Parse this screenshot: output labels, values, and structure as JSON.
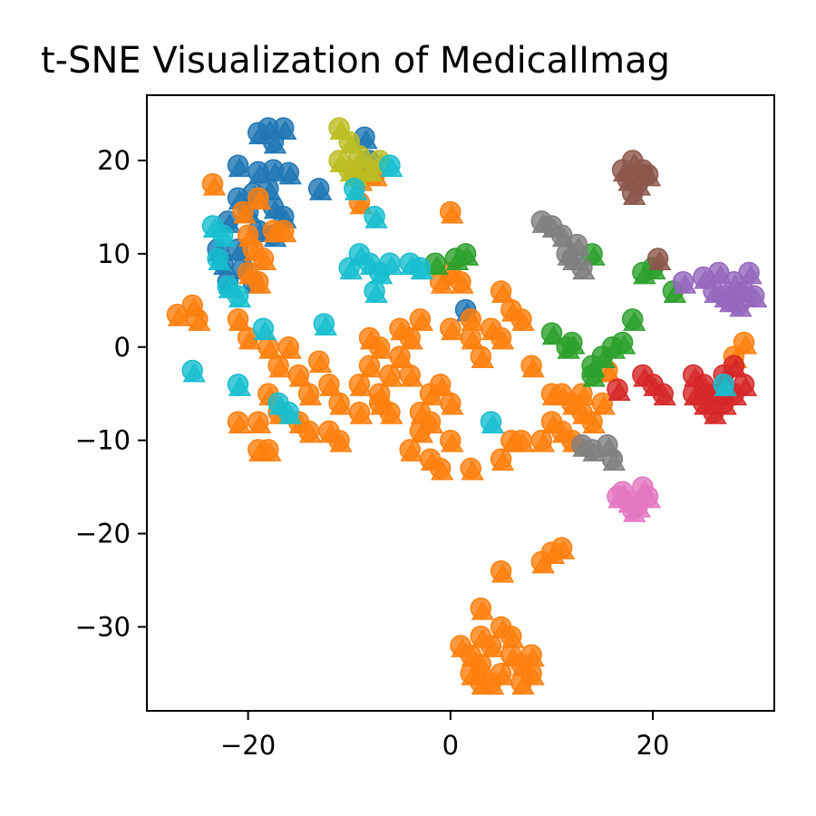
{
  "chart_data": {
    "type": "scatter",
    "title": "t-SNE Visualization of MedicalImag",
    "xlabel": "",
    "ylabel": "",
    "xlim": [
      -30,
      32
    ],
    "ylim": [
      -39,
      27
    ],
    "x_ticks": [
      -20,
      0,
      20
    ],
    "y_ticks": [
      20,
      10,
      0,
      -10,
      -20,
      -30
    ],
    "x_tick_labels": [
      "−20",
      "0",
      "20"
    ],
    "y_tick_labels": [
      "20",
      "10",
      "0",
      "−10",
      "−20",
      "−30"
    ],
    "grid": false,
    "legend": "none",
    "marker_shapes": [
      "circle",
      "triangle"
    ],
    "series": [
      {
        "color": "#1f77b4",
        "points": [
          [
            -19,
            23
          ],
          [
            -18,
            23.5
          ],
          [
            -16.5,
            23.5
          ],
          [
            -17.5,
            22
          ],
          [
            -21,
            19.5
          ],
          [
            -19,
            18.8
          ],
          [
            -17.5,
            19
          ],
          [
            -16,
            18.7
          ],
          [
            -19.5,
            16.5
          ],
          [
            -18,
            17
          ],
          [
            -21,
            16
          ],
          [
            -20,
            14.5
          ],
          [
            -17.5,
            15
          ],
          [
            -16.5,
            14
          ],
          [
            -22,
            13.5
          ],
          [
            -19,
            12.5
          ],
          [
            -17.5,
            12
          ],
          [
            -23,
            10.5
          ],
          [
            -21,
            10.5
          ],
          [
            -22.5,
            9
          ],
          [
            -20.5,
            8.5
          ],
          [
            -22,
            7
          ],
          [
            -19.5,
            7
          ],
          [
            -13,
            17
          ],
          [
            -8.5,
            22.5
          ],
          [
            -8,
            20
          ],
          [
            1.5,
            4
          ]
        ]
      },
      {
        "color": "#ff7f0e",
        "points": [
          [
            -23.5,
            17.5
          ],
          [
            -19,
            16
          ],
          [
            -20.5,
            14.5
          ],
          [
            -20,
            12
          ],
          [
            -17.5,
            12.5
          ],
          [
            -16.5,
            12.5
          ],
          [
            -19.5,
            10.5
          ],
          [
            -18.5,
            9.5
          ],
          [
            -20,
            8
          ],
          [
            -19,
            7
          ],
          [
            -27,
            3.5
          ],
          [
            -25.5,
            4.5
          ],
          [
            -25,
            3
          ],
          [
            -21,
            3
          ],
          [
            -20,
            1
          ],
          [
            -18,
            0
          ],
          [
            -16,
            0
          ],
          [
            -17,
            -2
          ],
          [
            -15,
            -3
          ],
          [
            -13,
            -1.5
          ],
          [
            -12,
            -4
          ],
          [
            -14,
            -5
          ],
          [
            -11,
            -6
          ],
          [
            -9,
            -4
          ],
          [
            -8,
            -2
          ],
          [
            -7,
            -5
          ],
          [
            -6,
            -3
          ],
          [
            -5,
            -1
          ],
          [
            -4,
            1
          ],
          [
            -3,
            3
          ],
          [
            -5,
            2
          ],
          [
            -4,
            -3
          ],
          [
            -6,
            -7
          ],
          [
            -7,
            -6
          ],
          [
            -9,
            -7
          ],
          [
            -3,
            -7
          ],
          [
            -2,
            -5
          ],
          [
            -1,
            -4
          ],
          [
            0,
            -6
          ],
          [
            -2,
            -8
          ],
          [
            -3,
            -9
          ],
          [
            -4,
            -11
          ],
          [
            -2,
            -12
          ],
          [
            0,
            -10
          ],
          [
            -1,
            -13
          ],
          [
            2,
            -13
          ],
          [
            -18,
            -5
          ],
          [
            -17,
            -7
          ],
          [
            -15,
            -8
          ],
          [
            -14,
            -9
          ],
          [
            -12,
            -9
          ],
          [
            -11,
            -10
          ],
          [
            -19,
            -8
          ],
          [
            -21,
            -8
          ],
          [
            -18,
            -11
          ],
          [
            -19,
            -11
          ],
          [
            0,
            14.5
          ],
          [
            -9,
            15.5
          ],
          [
            -9,
            18
          ],
          [
            -7.5,
            18.5
          ],
          [
            1,
            7
          ],
          [
            0,
            8
          ],
          [
            -1,
            7
          ],
          [
            0,
            2
          ],
          [
            2,
            1
          ],
          [
            3,
            -1
          ],
          [
            4,
            2
          ],
          [
            5,
            6
          ],
          [
            6,
            4
          ],
          [
            7,
            3
          ],
          [
            5,
            1
          ],
          [
            2,
            3
          ],
          [
            -8,
            1
          ],
          [
            -7,
            0
          ],
          [
            8,
            -2
          ],
          [
            10,
            -5
          ],
          [
            11,
            -5
          ],
          [
            12,
            -6
          ],
          [
            13,
            -7
          ],
          [
            14,
            -8
          ],
          [
            15,
            -6
          ],
          [
            13,
            -5
          ],
          [
            10,
            -8
          ],
          [
            9,
            -10
          ],
          [
            7,
            -10
          ],
          [
            5,
            -12
          ],
          [
            6,
            -10
          ],
          [
            11,
            -9
          ],
          [
            12,
            -10
          ],
          [
            5,
            -24
          ],
          [
            9,
            -23
          ],
          [
            10,
            -22
          ],
          [
            11,
            -21.5
          ],
          [
            3,
            -28
          ],
          [
            1,
            -32
          ],
          [
            2,
            -33
          ],
          [
            3,
            -34
          ],
          [
            4,
            -32
          ],
          [
            5,
            -35
          ],
          [
            6,
            -33
          ],
          [
            7,
            -34
          ],
          [
            8,
            -33
          ],
          [
            6,
            -31
          ],
          [
            3,
            -31
          ],
          [
            5,
            -30
          ],
          [
            2,
            -35
          ],
          [
            4,
            -36
          ],
          [
            7,
            -36
          ],
          [
            8,
            -35
          ],
          [
            3,
            -36
          ],
          [
            29,
            0.5
          ],
          [
            28,
            -1
          ],
          [
            15.5,
            -2.5
          ]
        ]
      },
      {
        "color": "#2ca02c",
        "points": [
          [
            -1.5,
            9
          ],
          [
            0.5,
            9.5
          ],
          [
            1.5,
            10
          ],
          [
            10,
            1.5
          ],
          [
            11.5,
            0
          ],
          [
            12,
            0.5
          ],
          [
            14,
            -2
          ],
          [
            15,
            -1
          ],
          [
            16,
            0
          ],
          [
            17,
            0.5
          ],
          [
            18,
            3
          ],
          [
            14,
            -3
          ],
          [
            14,
            10
          ],
          [
            19,
            8
          ],
          [
            20,
            8.5
          ],
          [
            22,
            6
          ]
        ]
      },
      {
        "color": "#d62728",
        "points": [
          [
            16.5,
            -4.5
          ],
          [
            19,
            -3
          ],
          [
            20,
            -4
          ],
          [
            21,
            -5
          ],
          [
            24,
            -3
          ],
          [
            25,
            -4
          ],
          [
            26,
            -5
          ],
          [
            27,
            -6
          ],
          [
            28,
            -5
          ],
          [
            29,
            -4
          ],
          [
            25,
            -6
          ],
          [
            26,
            -7
          ],
          [
            27,
            -3
          ],
          [
            28,
            -2
          ],
          [
            24,
            -5
          ]
        ]
      },
      {
        "color": "#9467bd",
        "points": [
          [
            23,
            7
          ],
          [
            25,
            7.5
          ],
          [
            26,
            6
          ],
          [
            27,
            5.5
          ],
          [
            28,
            7
          ],
          [
            29,
            6
          ],
          [
            29.5,
            8
          ],
          [
            30,
            5.5
          ],
          [
            27.5,
            5
          ],
          [
            26.5,
            8
          ],
          [
            28.5,
            4.5
          ]
        ]
      },
      {
        "color": "#8c564b",
        "points": [
          [
            17,
            19
          ],
          [
            18,
            20
          ],
          [
            19,
            19
          ],
          [
            18.5,
            17.5
          ],
          [
            17.5,
            18
          ],
          [
            19.5,
            18.5
          ],
          [
            18,
            16.5
          ],
          [
            20.5,
            9.5
          ]
        ]
      },
      {
        "color": "#e377c2",
        "points": [
          [
            16.5,
            -16
          ],
          [
            17.5,
            -16.5
          ],
          [
            18.5,
            -17
          ],
          [
            19.5,
            -16
          ],
          [
            19,
            -15
          ],
          [
            17,
            -15.5
          ],
          [
            18,
            -17.5
          ]
        ]
      },
      {
        "color": "#7f7f7f",
        "points": [
          [
            9,
            13.5
          ],
          [
            10,
            13
          ],
          [
            11,
            12
          ],
          [
            12.5,
            11
          ],
          [
            12,
            9.5
          ],
          [
            13,
            8.5
          ],
          [
            11.5,
            10
          ],
          [
            13,
            -10.5
          ],
          [
            14,
            -11
          ],
          [
            15.5,
            -10.5
          ],
          [
            16,
            -12
          ]
        ]
      },
      {
        "color": "#bcbd22",
        "points": [
          [
            -11,
            23.5
          ],
          [
            -10,
            22
          ],
          [
            -11,
            20
          ],
          [
            -10,
            19
          ],
          [
            -9,
            20.5
          ],
          [
            -8,
            19
          ],
          [
            -7,
            20
          ],
          [
            -9.5,
            18.5
          ]
        ]
      },
      {
        "color": "#17becf",
        "points": [
          [
            -23.5,
            13
          ],
          [
            -22.5,
            12
          ],
          [
            -23,
            9.5
          ],
          [
            -22,
            6.5
          ],
          [
            -21,
            5.5
          ],
          [
            -18.5,
            2
          ],
          [
            -25.5,
            -2.5
          ],
          [
            -21,
            -4
          ],
          [
            -17,
            -6
          ],
          [
            -16,
            -7
          ],
          [
            -12.5,
            2.5
          ],
          [
            -10,
            8.5
          ],
          [
            -9,
            10
          ],
          [
            -8,
            9
          ],
          [
            -7,
            8
          ],
          [
            -6,
            9
          ],
          [
            -7.5,
            6
          ],
          [
            -7.5,
            14
          ],
          [
            -9.5,
            17
          ],
          [
            -6,
            19.5
          ],
          [
            -4,
            9
          ],
          [
            -3,
            8.5
          ],
          [
            4,
            -8
          ],
          [
            27,
            -4
          ]
        ]
      }
    ]
  }
}
